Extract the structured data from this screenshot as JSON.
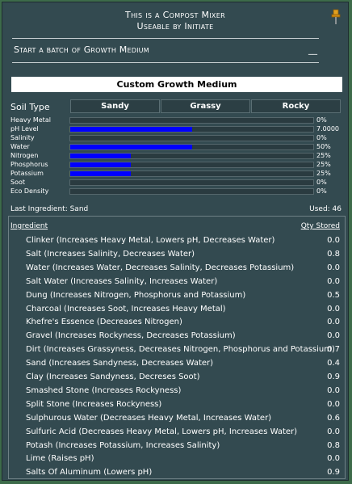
{
  "window": {
    "title_line1": "This is a Compost Mixer",
    "title_line2": "Useable by Initiate",
    "start_label": "Start a batch of Growth Medium",
    "minimize_label": "__",
    "pin_icon": "pushpin-icon"
  },
  "banner": "Custom Growth Medium",
  "soil": {
    "label": "Soil Type",
    "options": [
      "Sandy",
      "Grassy",
      "Rocky"
    ]
  },
  "stats": [
    {
      "name": "Heavy Metal",
      "value": "0%",
      "fill": 0
    },
    {
      "name": "pH Level",
      "value": "7.0000",
      "fill": 0.5
    },
    {
      "name": "Salinity",
      "value": "0%",
      "fill": 0
    },
    {
      "name": "Water",
      "value": "50%",
      "fill": 0.5
    },
    {
      "name": "Nitrogen",
      "value": "25%",
      "fill": 0.25
    },
    {
      "name": "Phosphorus",
      "value": "25%",
      "fill": 0.25
    },
    {
      "name": "Potassium",
      "value": "25%",
      "fill": 0.25
    },
    {
      "name": "Soot",
      "value": "0%",
      "fill": 0
    },
    {
      "name": "Eco Density",
      "value": "0%",
      "fill": 0
    }
  ],
  "last_ingredient": "Last Ingredient: Sand",
  "used": "Used: 46",
  "table": {
    "col_ingredient": "Ingredient",
    "col_qty": "Qty Stored",
    "rows": [
      {
        "name": "Clinker (Increases Heavy Metal, Lowers pH, Decreases Water)",
        "qty": "0.0"
      },
      {
        "name": "Salt (Increases Salinity, Decreases Water)",
        "qty": "0.8"
      },
      {
        "name": "Water (Increases Water, Decreases Salinity, Decreases Potassium)",
        "qty": "0.0"
      },
      {
        "name": "Salt Water (Increases Salinity, Increases Water)",
        "qty": "0.0"
      },
      {
        "name": "Dung (Increases Nitrogen, Phosphorus and Potassium)",
        "qty": "0.5"
      },
      {
        "name": "Charcoal (Increases Soot, Increases Heavy Metal)",
        "qty": "0.0"
      },
      {
        "name": "Khefre's Essence (Decreases Nitrogen)",
        "qty": "0.0"
      },
      {
        "name": "Gravel (Increases Rockyness, Decreases Potassium)",
        "qty": "0.0"
      },
      {
        "name": "Dirt (Increases Grassyness, Decreases Nitrogen, Phosphorus and Potassium)",
        "qty": "0.7"
      },
      {
        "name": "Sand (Increases Sandyness, Decreases Water)",
        "qty": "0.4"
      },
      {
        "name": "Clay (Increases Sandyness, Decreses Soot)",
        "qty": "0.9"
      },
      {
        "name": "Smashed Stone (Increases Rockyness)",
        "qty": "0.0"
      },
      {
        "name": "Split Stone (Increases Rockyness)",
        "qty": "0.0"
      },
      {
        "name": "Sulphurous Water (Decreases Heavy Metal, Increases Water)",
        "qty": "0.6"
      },
      {
        "name": "Sulfuric Acid (Decreases Heavy Metal, Lowers pH, Increases Water)",
        "qty": "0.0"
      },
      {
        "name": "Potash (Increases Potassium, Increases Salinity)",
        "qty": "0.8"
      },
      {
        "name": "Lime (Raises pH)",
        "qty": "0.0"
      },
      {
        "name": "Salts Of Aluminum (Lowers pH)",
        "qty": "0.9"
      }
    ]
  }
}
